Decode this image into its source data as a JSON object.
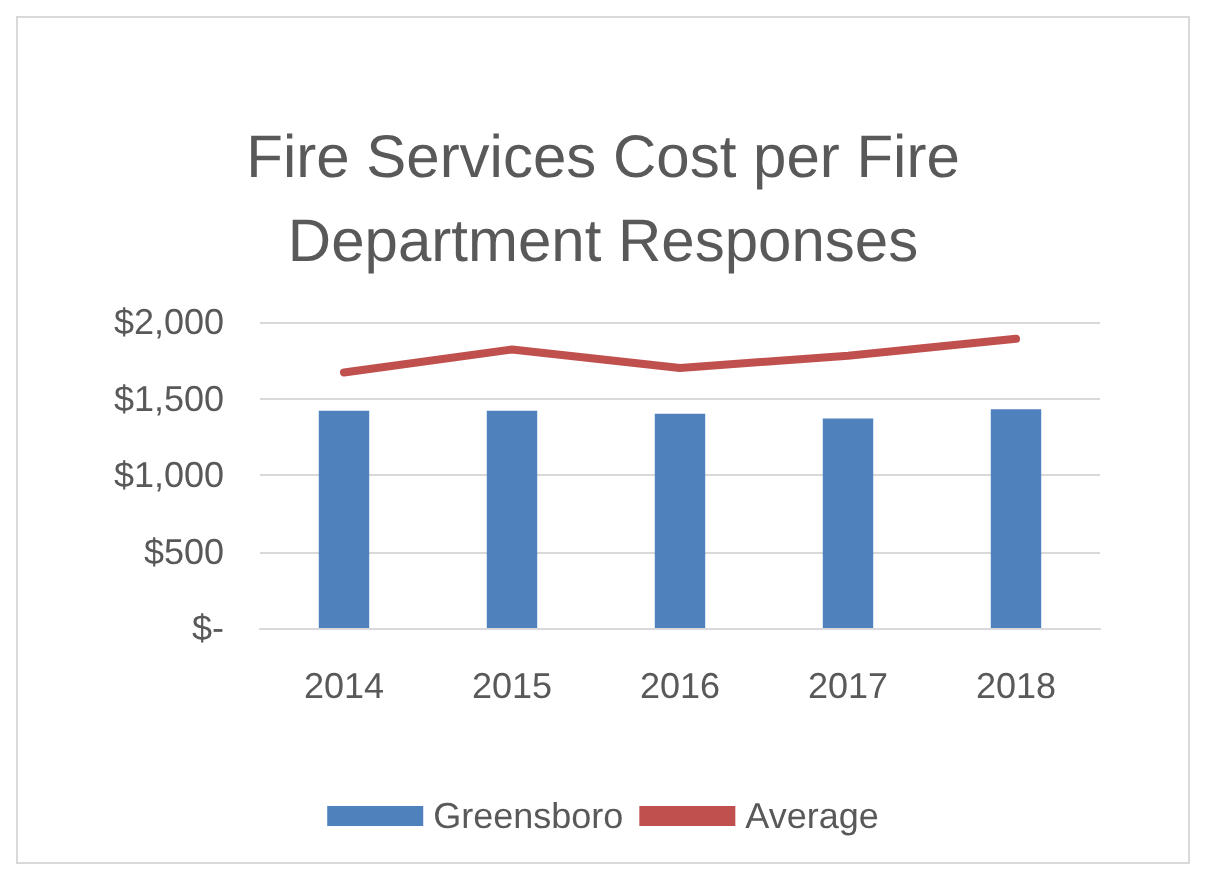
{
  "chart_data": {
    "type": "bar",
    "title": "Fire Services Cost per Fire\nDepartment Responses",
    "categories": [
      "2014",
      "2015",
      "2016",
      "2017",
      "2018"
    ],
    "series": [
      {
        "name": "Greensboro",
        "color": "#4f81bd",
        "values": [
          1420,
          1420,
          1400,
          1370,
          1430
        ]
      },
      {
        "name": "Average",
        "type": "line",
        "color": "#c0504d",
        "values": [
          1670,
          1820,
          1700,
          1780,
          1890
        ]
      }
    ],
    "ylim": [
      0,
      2000
    ],
    "yticks": [
      {
        "value": 0,
        "label": "$-"
      },
      {
        "value": 500,
        "label": "$500"
      },
      {
        "value": 1000,
        "label": "$1,000"
      },
      {
        "value": 1500,
        "label": "$1,500"
      },
      {
        "value": 2000,
        "label": "$2,000"
      }
    ],
    "grid": "y",
    "legend": "bottom",
    "marker": "none"
  }
}
